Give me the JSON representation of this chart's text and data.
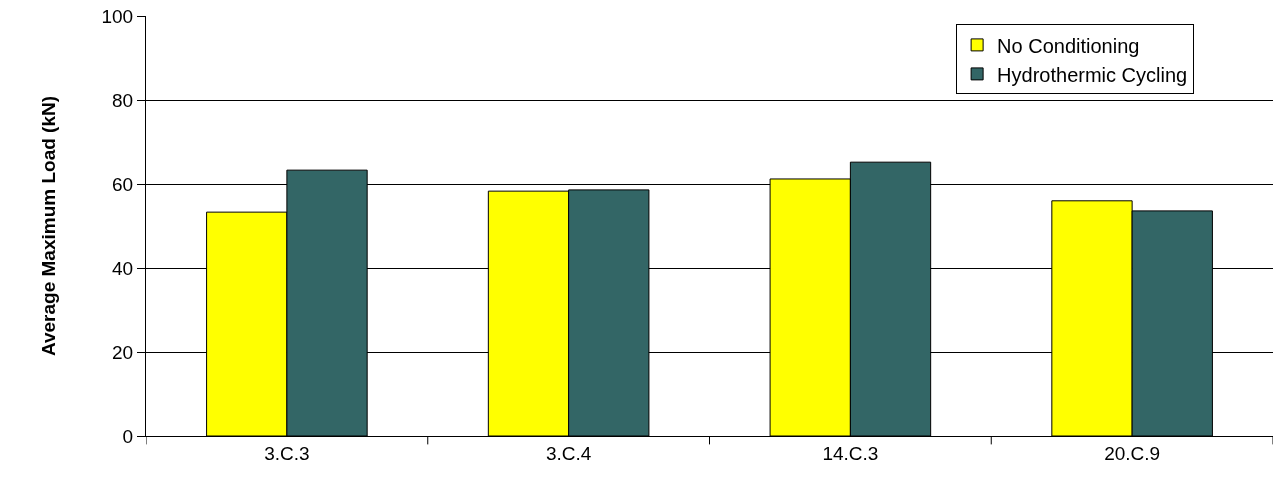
{
  "chart_data": {
    "type": "bar",
    "ylabel": "Average Maximum Load (kN)",
    "categories": [
      "3.C.3",
      "3.C.4",
      "14.C.3",
      "20.C.9"
    ],
    "series": [
      {
        "name": "No Conditioning",
        "color": "#ffff00",
        "values": [
          53.3,
          58.3,
          61.2,
          56.0
        ]
      },
      {
        "name": "Hydrothermic Cycling",
        "color": "#336666",
        "values": [
          63.3,
          58.6,
          65.2,
          53.6
        ]
      }
    ],
    "ylim": [
      0,
      100
    ],
    "yticks": [
      0,
      20,
      40,
      60,
      80,
      100
    ],
    "grid": "y",
    "legend": "top right"
  }
}
